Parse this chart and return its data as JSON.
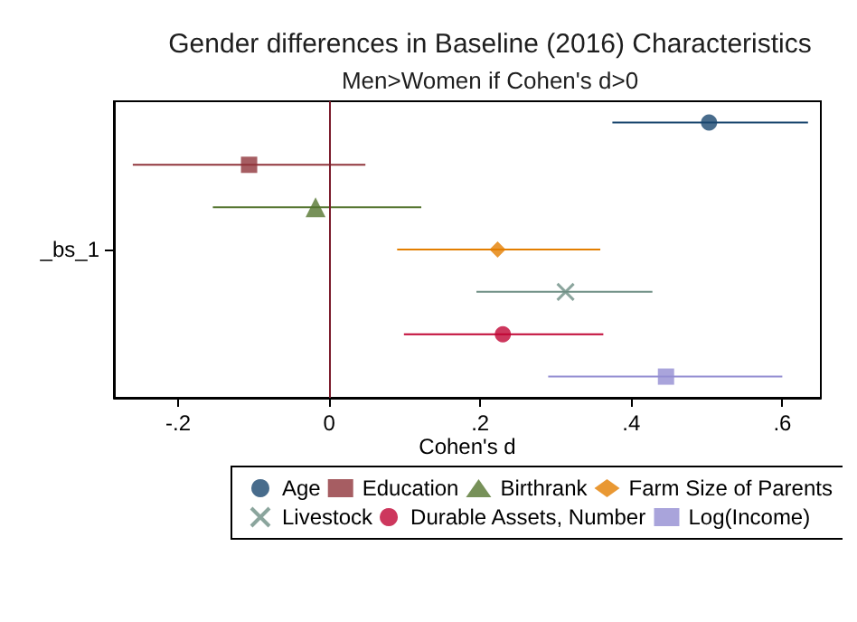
{
  "chart_data": {
    "type": "scatter",
    "orientation": "horizontal",
    "title": "Gender differences in Baseline (2016) Characteristics",
    "subtitle": "Men>Women if Cohen's d>0",
    "xlabel": "Cohen's d",
    "categories": [
      null,
      null,
      null,
      "_bs_1",
      null,
      null,
      null
    ],
    "xlim": [
      -0.285,
      0.651
    ],
    "xticks": [
      {
        "value": -0.2,
        "label": "-.2"
      },
      0,
      {
        "value": 0.2,
        "label": ".2"
      },
      {
        "value": 0.4,
        "label": ".4"
      },
      {
        "value": 0.6,
        "label": ".6"
      }
    ],
    "legend": "bottom",
    "grid": false,
    "ref_lines": [
      {
        "axis": "x",
        "value": 0,
        "color": "#7b1c2c"
      }
    ],
    "series": [
      {
        "name": "Age",
        "color": "#1a476f",
        "marker": "circle",
        "values": [
          0.503,
          null,
          null,
          null,
          null,
          null,
          null
        ],
        "errors": [
          [
            0.375,
            0.634
          ],
          null,
          null,
          null,
          null,
          null,
          null
        ]
      },
      {
        "name": "Education",
        "color": "#90353b",
        "marker": "square",
        "values": [
          null,
          -0.106,
          null,
          null,
          null,
          null,
          null
        ],
        "errors": [
          null,
          [
            -0.26,
            0.048
          ],
          null,
          null,
          null,
          null,
          null
        ]
      },
      {
        "name": "Birthrank",
        "color": "#55752f",
        "marker": "triangle",
        "values": [
          null,
          null,
          -0.018,
          null,
          null,
          null,
          null
        ],
        "errors": [
          null,
          null,
          [
            -0.154,
            0.122
          ],
          null,
          null,
          null,
          null
        ]
      },
      {
        "name": "Farm Size of Parents",
        "color": "#e37e00",
        "marker": "diamond",
        "values": [
          null,
          null,
          null,
          0.223,
          null,
          null,
          null
        ],
        "errors": [
          null,
          null,
          null,
          [
            0.09,
            0.359
          ],
          null,
          null,
          null
        ]
      },
      {
        "name": "Livestock",
        "color": "#6e8e84",
        "marker": "cross",
        "values": [
          null,
          null,
          null,
          null,
          0.313,
          null,
          null
        ],
        "errors": [
          null,
          null,
          null,
          null,
          [
            0.195,
            0.428
          ],
          null,
          null
        ]
      },
      {
        "name": "Durable Assets, Number",
        "color": "#c10534",
        "marker": "circle",
        "values": [
          null,
          null,
          null,
          null,
          null,
          0.23,
          null
        ],
        "errors": [
          null,
          null,
          null,
          null,
          null,
          [
            0.099,
            0.363
          ],
          null
        ]
      },
      {
        "name": "Log(Income)",
        "color": "#938dd2",
        "marker": "square",
        "values": [
          null,
          null,
          null,
          null,
          null,
          null,
          0.446
        ],
        "errors": [
          null,
          null,
          null,
          null,
          null,
          null,
          [
            0.29,
            0.6
          ]
        ]
      }
    ]
  }
}
